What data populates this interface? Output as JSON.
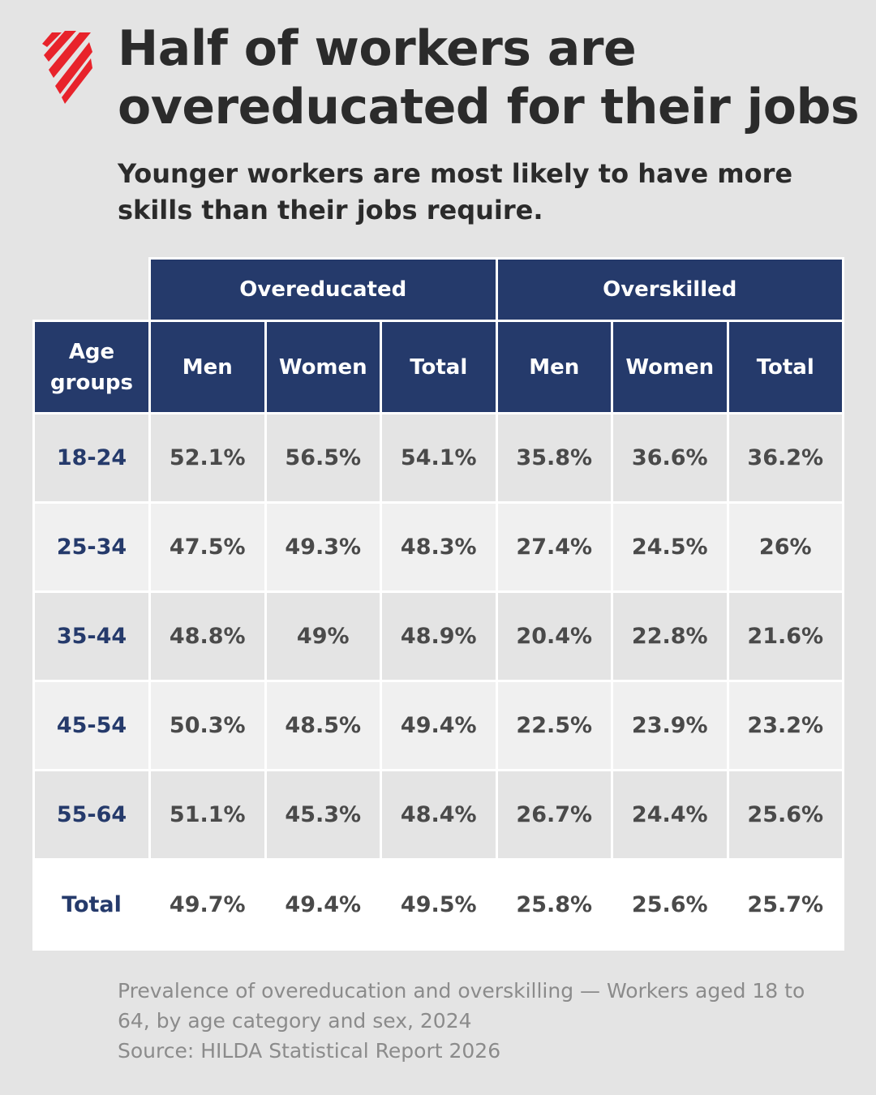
{
  "header": {
    "title": "Half of workers are overeducated for their jobs",
    "subtitle": "Younger workers are most likely to have more skills than their jobs require."
  },
  "colors": {
    "header_navy": "#253a6b",
    "logo_red": "#e8232b",
    "background": "#e4e4e4"
  },
  "logo": {
    "icon": "sbs-logo-icon"
  },
  "chart_data": {
    "type": "table",
    "column_groups": [
      "Overeducated",
      "Overskilled"
    ],
    "row_header_label": "Age groups",
    "columns": [
      "Men",
      "Women",
      "Total",
      "Men",
      "Women",
      "Total"
    ],
    "rows": [
      {
        "label": "18-24",
        "values": [
          "52.1%",
          "56.5%",
          "54.1%",
          "35.8%",
          "36.6%",
          "36.2%"
        ]
      },
      {
        "label": "25-34",
        "values": [
          "47.5%",
          "49.3%",
          "48.3%",
          "27.4%",
          "24.5%",
          "26%"
        ]
      },
      {
        "label": "35-44",
        "values": [
          "48.8%",
          "49%",
          "48.9%",
          "20.4%",
          "22.8%",
          "21.6%"
        ]
      },
      {
        "label": "45-54",
        "values": [
          "50.3%",
          "48.5%",
          "49.4%",
          "22.5%",
          "23.9%",
          "23.2%"
        ]
      },
      {
        "label": "55-64",
        "values": [
          "51.1%",
          "45.3%",
          "48.4%",
          "26.7%",
          "24.4%",
          "25.6%"
        ]
      },
      {
        "label": "Total",
        "values": [
          "49.7%",
          "49.4%",
          "49.5%",
          "25.8%",
          "25.6%",
          "25.7%"
        ]
      }
    ]
  },
  "footer": {
    "caption": "Prevalence of overeducation and overskilling — Workers aged 18 to 64, by age category and sex, 2024",
    "source": "Source: HILDA Statistical Report 2026"
  }
}
